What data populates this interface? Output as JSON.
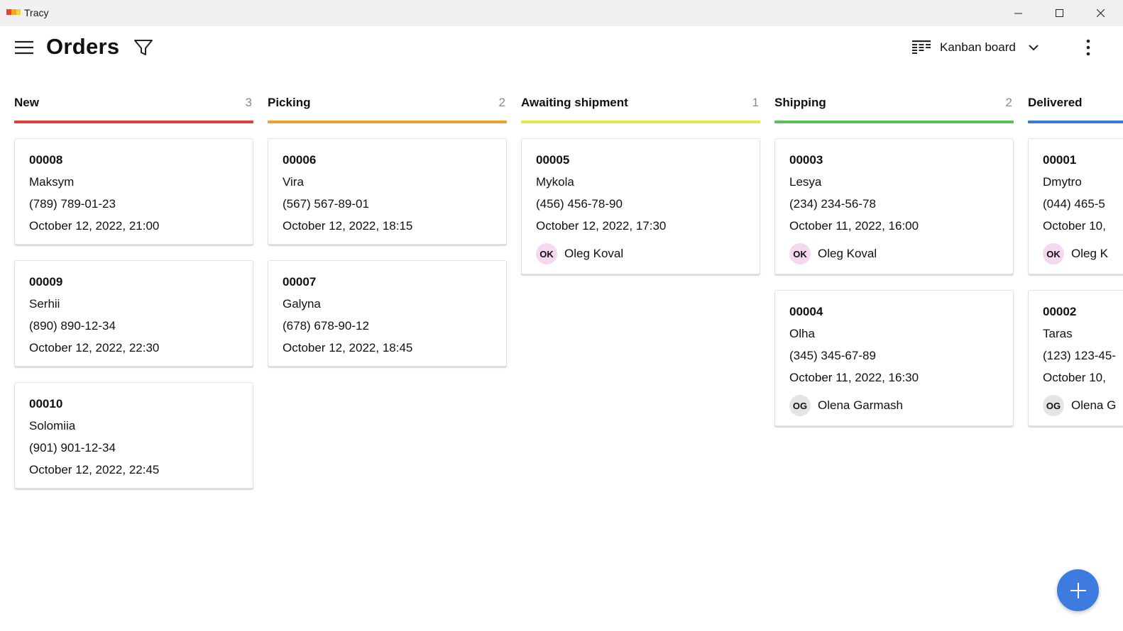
{
  "window": {
    "title": "Tracy",
    "logo_colors": [
      "#e8412c",
      "#f5a623",
      "#f2d43a"
    ]
  },
  "header": {
    "title": "Orders",
    "view_label": "Kanban board"
  },
  "columns": [
    {
      "title": "New",
      "count": "3",
      "color": "#e03c3c",
      "cards": [
        {
          "id": "00008",
          "name": "Maksym",
          "phone": "(789) 789-01-23",
          "date": "October 12, 2022, 21:00"
        },
        {
          "id": "00009",
          "name": "Serhii",
          "phone": "(890) 890-12-34",
          "date": "October 12, 2022, 22:30"
        },
        {
          "id": "00010",
          "name": "Solomiia",
          "phone": "(901) 901-12-34",
          "date": "October 12, 2022, 22:45"
        }
      ]
    },
    {
      "title": "Picking",
      "count": "2",
      "color": "#f0a12b",
      "cards": [
        {
          "id": "00006",
          "name": "Vira",
          "phone": "(567) 567-89-01",
          "date": "October 12, 2022, 18:15"
        },
        {
          "id": "00007",
          "name": "Galyna",
          "phone": "(678) 678-90-12",
          "date": "October 12, 2022, 18:45"
        }
      ]
    },
    {
      "title": "Awaiting shipment",
      "count": "1",
      "color": "#e8e34a",
      "cards": [
        {
          "id": "00005",
          "name": "Mykola",
          "phone": "(456) 456-78-90",
          "date": "October 12, 2022, 17:30",
          "assignee": {
            "initials": "OK",
            "name": "Oleg Koval",
            "color": "#f3d8f0"
          }
        }
      ]
    },
    {
      "title": "Shipping",
      "count": "2",
      "color": "#5cbf5a",
      "cards": [
        {
          "id": "00003",
          "name": "Lesya",
          "phone": "(234) 234-56-78",
          "date": "October 11, 2022, 16:00",
          "assignee": {
            "initials": "OK",
            "name": "Oleg Koval",
            "color": "#f3d8f0"
          }
        },
        {
          "id": "00004",
          "name": "Olha",
          "phone": "(345) 345-67-89",
          "date": "October 11, 2022, 16:30",
          "assignee": {
            "initials": "OG",
            "name": "Olena Garmash",
            "color": "#e4e4e4"
          }
        }
      ]
    },
    {
      "title": "Delivered",
      "count": "",
      "color": "#3c78d8",
      "cards": [
        {
          "id": "00001",
          "name": "Dmytro",
          "phone": "(044) 465-5",
          "date": "October 10,",
          "assignee": {
            "initials": "OK",
            "name": "Oleg K",
            "color": "#f3d8f0"
          }
        },
        {
          "id": "00002",
          "name": "Taras",
          "phone": "(123) 123-45-",
          "date": "October 10,",
          "assignee": {
            "initials": "OG",
            "name": "Olena G",
            "color": "#e4e4e4"
          }
        }
      ]
    }
  ],
  "icons": {
    "menu": "hamburger-icon",
    "filter": "filter-icon",
    "view": "kanban-icon",
    "chevron": "chevron-down-icon",
    "more": "more-vertical-icon",
    "add": "plus-icon",
    "minimize": "minimize-icon",
    "maximize": "maximize-icon",
    "close": "close-icon"
  },
  "accent_color": "#3d7be0"
}
